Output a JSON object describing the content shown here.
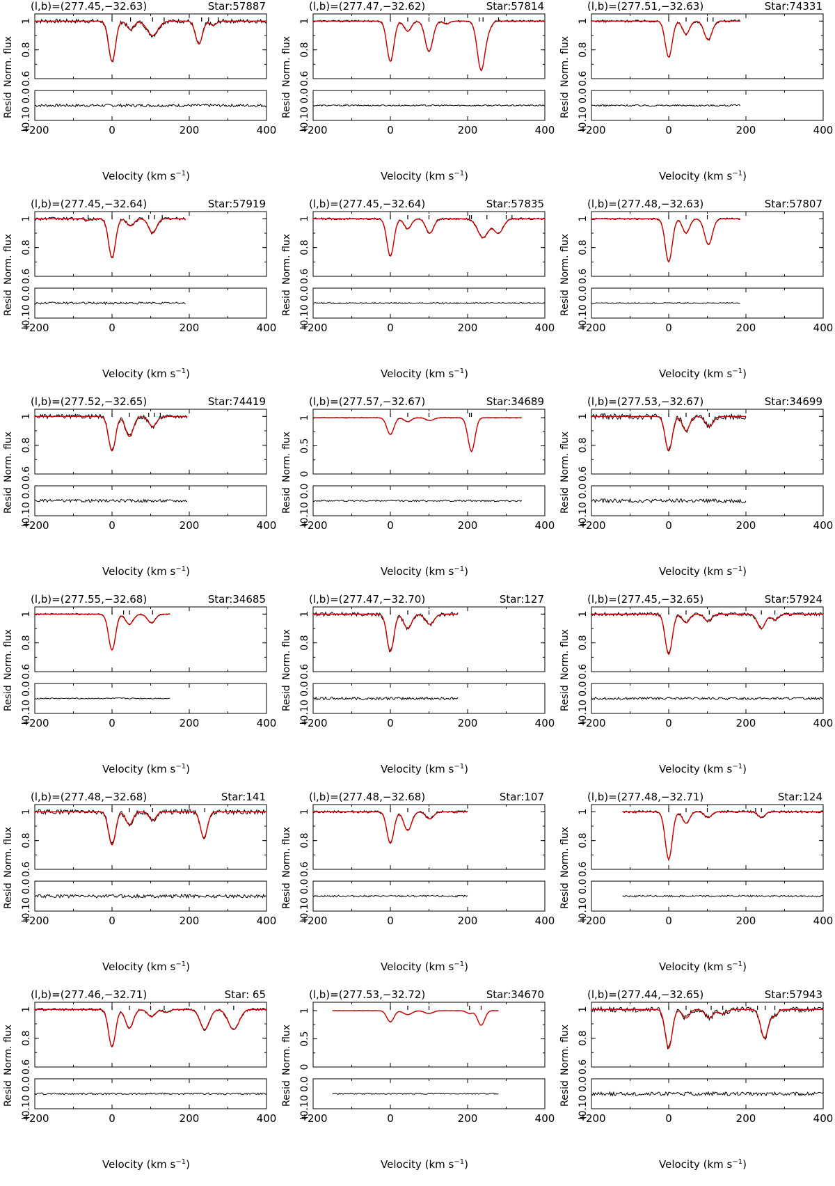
{
  "labels": {
    "ylabel_top": "Norm. flux",
    "ylabel_bottom": "Resid",
    "xlabel_prefix": "Velocity (km s",
    "xlabel_exp": "−1",
    "xlabel_suffix": ")",
    "resid_ticks": "+0.10 0.0",
    "resid_tick_text": "0.10 0.0",
    "resid_zero": "0.0",
    "resid_plus": "+"
  },
  "chart_data": [
    {
      "type": "line",
      "title": "(l,b)=(277.45,−32.63)",
      "star": "Star:57887",
      "xlim": [
        -200,
        400
      ],
      "ylim": [
        0.6,
        1.05
      ],
      "yticks": [
        "0.6",
        "0.8",
        "1"
      ],
      "xticks": [
        "−200",
        "0",
        "200",
        "400"
      ],
      "x_range": [
        -200,
        400
      ],
      "components": [
        {
          "v": 0,
          "d": 0.28,
          "w": 9
        },
        {
          "v": 48,
          "d": 0.06,
          "w": 9
        },
        {
          "v": 105,
          "d": 0.1,
          "w": 14
        },
        {
          "v": 225,
          "d": 0.16,
          "w": 9
        },
        {
          "v": 262,
          "d": 0.03,
          "w": 8
        }
      ],
      "markers": [
        0,
        48,
        105,
        135,
        232,
        250,
        275
      ],
      "noise": 0.01
    },
    {
      "type": "line",
      "title": "(l,b)=(277.47,−32.62)",
      "star": "Star:57814",
      "xlim": [
        -200,
        400
      ],
      "ylim": [
        0.6,
        1.05
      ],
      "yticks": [
        "0.6",
        "0.8",
        "1"
      ],
      "xticks": [
        "−200",
        "0",
        "200",
        "400"
      ],
      "x_range": [
        -200,
        400
      ],
      "components": [
        {
          "v": 0,
          "d": 0.28,
          "w": 9
        },
        {
          "v": 45,
          "d": 0.07,
          "w": 9
        },
        {
          "v": 100,
          "d": 0.21,
          "w": 10
        },
        {
          "v": 145,
          "d": 0.02,
          "w": 8
        },
        {
          "v": 235,
          "d": 0.34,
          "w": 10
        },
        {
          "v": 255,
          "d": 0.04,
          "w": 8
        }
      ],
      "markers": [
        0,
        45,
        100,
        140,
        230,
        240,
        280
      ],
      "noise": 0.005
    },
    {
      "type": "line",
      "title": "(l,b)=(277.51,−32.63)",
      "star": "Star:74331",
      "xlim": [
        -200,
        400
      ],
      "ylim": [
        0.6,
        1.05
      ],
      "yticks": [
        "0.6",
        "0.8",
        "1"
      ],
      "xticks": [
        "−200",
        "0",
        "200",
        "400"
      ],
      "x_range": [
        -200,
        185
      ],
      "components": [
        {
          "v": 0,
          "d": 0.25,
          "w": 9
        },
        {
          "v": 45,
          "d": 0.09,
          "w": 9
        },
        {
          "v": 102,
          "d": 0.13,
          "w": 10
        }
      ],
      "markers": [
        0,
        45,
        100,
        115
      ],
      "noise": 0.006
    },
    {
      "type": "line",
      "title": "(l,b)=(277.45,−32.64)",
      "star": "Star:57919",
      "xlim": [
        -200,
        400
      ],
      "ylim": [
        0.6,
        1.05
      ],
      "yticks": [
        "0.6",
        "0.8",
        "1"
      ],
      "xticks": [
        "−200",
        "0",
        "200",
        "400"
      ],
      "x_range": [
        -200,
        190
      ],
      "components": [
        {
          "v": 0,
          "d": 0.27,
          "w": 9
        },
        {
          "v": 48,
          "d": 0.05,
          "w": 9
        },
        {
          "v": 105,
          "d": 0.1,
          "w": 10
        },
        {
          "v": -62,
          "d": 0.01,
          "w": 8
        }
      ],
      "markers": [
        -62,
        0,
        45,
        95,
        110,
        130
      ],
      "noise": 0.008
    },
    {
      "type": "line",
      "title": "(l,b)=(277.45,−32.64)",
      "star": "Star:57835",
      "xlim": [
        -200,
        400
      ],
      "ylim": [
        0.6,
        1.05
      ],
      "yticks": [
        "0.6",
        "0.8",
        "1"
      ],
      "xticks": [
        "−200",
        "0",
        "200",
        "400"
      ],
      "x_range": [
        -200,
        400
      ],
      "components": [
        {
          "v": 0,
          "d": 0.26,
          "w": 9
        },
        {
          "v": 45,
          "d": 0.07,
          "w": 9
        },
        {
          "v": 102,
          "d": 0.1,
          "w": 10
        },
        {
          "v": 240,
          "d": 0.13,
          "w": 14
        },
        {
          "v": 280,
          "d": 0.1,
          "w": 12
        }
      ],
      "markers": [
        0,
        45,
        100,
        205,
        210,
        250,
        300,
        315
      ],
      "noise": 0.005
    },
    {
      "type": "line",
      "title": "(l,b)=(277.48,−32.63)",
      "star": "Star:57807",
      "xlim": [
        -200,
        400
      ],
      "ylim": [
        0.6,
        1.05
      ],
      "yticks": [
        "0.6",
        "0.8",
        "1"
      ],
      "xticks": [
        "−200",
        "0",
        "200",
        "400"
      ],
      "x_range": [
        -200,
        185
      ],
      "components": [
        {
          "v": 0,
          "d": 0.3,
          "w": 9
        },
        {
          "v": 45,
          "d": 0.1,
          "w": 9
        },
        {
          "v": 103,
          "d": 0.18,
          "w": 10
        }
      ],
      "markers": [
        0,
        45,
        100
      ],
      "noise": 0.004
    },
    {
      "type": "line",
      "title": "(l,b)=(277.52,−32.65)",
      "star": "Star:74419",
      "xlim": [
        -200,
        400
      ],
      "ylim": [
        0.6,
        1.05
      ],
      "yticks": [
        "0.6",
        "0.8",
        "1"
      ],
      "xticks": [
        "−200",
        "0",
        "200",
        "400"
      ],
      "x_range": [
        -200,
        195
      ],
      "components": [
        {
          "v": 0,
          "d": 0.24,
          "w": 9
        },
        {
          "v": 45,
          "d": 0.14,
          "w": 10
        },
        {
          "v": 105,
          "d": 0.07,
          "w": 10
        }
      ],
      "markers": [
        0,
        45,
        95,
        110,
        125
      ],
      "noise": 0.01
    },
    {
      "type": "line",
      "title": "(l,b)=(277.57,−32.67)",
      "star": "Star:34689",
      "xlim": [
        -200,
        400
      ],
      "ylim": [
        0,
        1.15
      ],
      "yticks": [
        "0",
        "0.5",
        "1"
      ],
      "xticks": [
        "−200",
        "0",
        "200",
        "400"
      ],
      "x_range": [
        -200,
        340
      ],
      "components": [
        {
          "v": 0,
          "d": 0.3,
          "w": 9
        },
        {
          "v": 45,
          "d": 0.07,
          "w": 9
        },
        {
          "v": 102,
          "d": 0.05,
          "w": 10
        },
        {
          "v": 210,
          "d": 0.6,
          "w": 9
        }
      ],
      "markers": [
        0,
        45,
        100,
        205,
        210
      ],
      "noise": 0.006
    },
    {
      "type": "line",
      "title": "(l,b)=(277.53,−32.67)",
      "star": "Star:34699",
      "xlim": [
        -200,
        400
      ],
      "ylim": [
        0.6,
        1.05
      ],
      "yticks": [
        "0.6",
        "0.8",
        "1"
      ],
      "xticks": [
        "−200",
        "0",
        "200",
        "400"
      ],
      "x_range": [
        -200,
        200
      ],
      "components": [
        {
          "v": 0,
          "d": 0.24,
          "w": 9
        },
        {
          "v": 45,
          "d": 0.1,
          "w": 9
        },
        {
          "v": 105,
          "d": 0.07,
          "w": 10
        }
      ],
      "markers": [
        0,
        45,
        105
      ],
      "noise": 0.014
    },
    {
      "type": "line",
      "title": "(l,b)=(277.55,−32.68)",
      "star": "Star:34685",
      "xlim": [
        -200,
        400
      ],
      "ylim": [
        0.6,
        1.05
      ],
      "yticks": [
        "0.6",
        "0.8",
        "1"
      ],
      "xticks": [
        "−200",
        "0",
        "200",
        "400"
      ],
      "x_range": [
        -200,
        150
      ],
      "components": [
        {
          "v": 0,
          "d": 0.25,
          "w": 9
        },
        {
          "v": 45,
          "d": 0.07,
          "w": 10
        },
        {
          "v": 102,
          "d": 0.06,
          "w": 10
        }
      ],
      "markers": [
        0,
        30,
        45,
        105
      ],
      "noise": 0.004
    },
    {
      "type": "line",
      "title": "(l,b)=(277.47,−32.70)",
      "star": "Star:127",
      "xlim": [
        -200,
        400
      ],
      "ylim": [
        0.6,
        1.05
      ],
      "yticks": [
        "0.6",
        "0.8",
        "1"
      ],
      "xticks": [
        "−200",
        "0",
        "200",
        "400"
      ],
      "x_range": [
        -200,
        175
      ],
      "components": [
        {
          "v": 0,
          "d": 0.26,
          "w": 9
        },
        {
          "v": 45,
          "d": 0.1,
          "w": 10
        },
        {
          "v": 102,
          "d": 0.07,
          "w": 11
        }
      ],
      "markers": [
        0,
        45,
        100
      ],
      "noise": 0.01
    },
    {
      "type": "line",
      "title": "(l,b)=(277.45,−32.65)",
      "star": "Star:57924",
      "xlim": [
        -200,
        400
      ],
      "ylim": [
        0.6,
        1.05
      ],
      "yticks": [
        "0.6",
        "0.8",
        "1"
      ],
      "xticks": [
        "−200",
        "0",
        "200",
        "400"
      ],
      "x_range": [
        -200,
        400
      ],
      "components": [
        {
          "v": 0,
          "d": 0.28,
          "w": 9
        },
        {
          "v": 45,
          "d": 0.06,
          "w": 9
        },
        {
          "v": 102,
          "d": 0.05,
          "w": 9
        },
        {
          "v": 240,
          "d": 0.1,
          "w": 10
        },
        {
          "v": 275,
          "d": 0.04,
          "w": 9
        }
      ],
      "markers": [
        0,
        45,
        105,
        240,
        275
      ],
      "noise": 0.008
    },
    {
      "type": "line",
      "title": "(l,b)=(277.48,−32.68)",
      "star": "Star:141",
      "xlim": [
        -200,
        400
      ],
      "ylim": [
        0.6,
        1.05
      ],
      "yticks": [
        "0.6",
        "0.8",
        "1"
      ],
      "xticks": [
        "−200",
        "0",
        "200",
        "400"
      ],
      "x_range": [
        -200,
        400
      ],
      "components": [
        {
          "v": 0,
          "d": 0.23,
          "w": 9
        },
        {
          "v": 45,
          "d": 0.09,
          "w": 9
        },
        {
          "v": 105,
          "d": 0.06,
          "w": 9
        },
        {
          "v": 238,
          "d": 0.18,
          "w": 9
        }
      ],
      "markers": [
        0,
        45,
        105,
        240
      ],
      "noise": 0.012
    },
    {
      "type": "line",
      "title": "(l,b)=(277.48,−32.68)",
      "star": "Star:107",
      "xlim": [
        -200,
        400
      ],
      "ylim": [
        0.6,
        1.05
      ],
      "yticks": [
        "0.6",
        "0.8",
        "1"
      ],
      "xticks": [
        "−200",
        "0",
        "200",
        "400"
      ],
      "x_range": [
        -200,
        200
      ],
      "components": [
        {
          "v": 0,
          "d": 0.22,
          "w": 9
        },
        {
          "v": 45,
          "d": 0.13,
          "w": 10
        },
        {
          "v": 102,
          "d": 0.05,
          "w": 10
        }
      ],
      "markers": [
        0,
        45,
        100
      ],
      "noise": 0.006
    },
    {
      "type": "line",
      "title": "(l,b)=(277.48,−32.71)",
      "star": "Star:124",
      "xlim": [
        -200,
        400
      ],
      "ylim": [
        0.6,
        1.05
      ],
      "yticks": [
        "0.6",
        "0.8",
        "1"
      ],
      "xticks": [
        "−200",
        "0",
        "200",
        "400"
      ],
      "x_range": [
        -120,
        400
      ],
      "components": [
        {
          "v": 0,
          "d": 0.33,
          "w": 9
        },
        {
          "v": 45,
          "d": 0.08,
          "w": 9
        },
        {
          "v": 102,
          "d": 0.04,
          "w": 9
        },
        {
          "v": 240,
          "d": 0.04,
          "w": 9
        }
      ],
      "markers": [
        0,
        45,
        100,
        225,
        240
      ],
      "noise": 0.006
    },
    {
      "type": "line",
      "title": "(l,b)=(277.46,−32.71)",
      "star": "Star: 65",
      "xlim": [
        -200,
        400
      ],
      "ylim": [
        0.6,
        1.05
      ],
      "yticks": [
        "0.6",
        "0.8",
        "1"
      ],
      "xticks": [
        "−200",
        "0",
        "200",
        "400"
      ],
      "x_range": [
        -200,
        400
      ],
      "components": [
        {
          "v": 0,
          "d": 0.26,
          "w": 9
        },
        {
          "v": 45,
          "d": 0.13,
          "w": 10
        },
        {
          "v": 102,
          "d": 0.05,
          "w": 10
        },
        {
          "v": 140,
          "d": 0.02,
          "w": 9
        },
        {
          "v": 240,
          "d": 0.14,
          "w": 12
        },
        {
          "v": 315,
          "d": 0.14,
          "w": 14
        }
      ],
      "markers": [
        0,
        45,
        100,
        135,
        240,
        315
      ],
      "noise": 0.006
    },
    {
      "type": "line",
      "title": "(l,b)=(277.53,−32.72)",
      "star": "Star:34670",
      "xlim": [
        -200,
        400
      ],
      "ylim": [
        0,
        1.15
      ],
      "yticks": [
        "0",
        "0.5",
        "1"
      ],
      "xticks": [
        "−200",
        "0",
        "200",
        "400"
      ],
      "x_range": [
        -150,
        280
      ],
      "components": [
        {
          "v": 0,
          "d": 0.2,
          "w": 9
        },
        {
          "v": 45,
          "d": 0.07,
          "w": 11
        },
        {
          "v": 100,
          "d": 0.05,
          "w": 11
        },
        {
          "v": 205,
          "d": 0.05,
          "w": 8
        },
        {
          "v": 235,
          "d": 0.26,
          "w": 9
        }
      ],
      "markers": [
        0,
        45,
        100,
        205,
        235
      ],
      "noise": 0.004
    },
    {
      "type": "line",
      "title": "(l,b)=(277.44,−32.65)",
      "star": "Star:57943",
      "xlim": [
        -200,
        400
      ],
      "ylim": [
        0.6,
        1.05
      ],
      "yticks": [
        "0.6",
        "0.8",
        "1"
      ],
      "xticks": [
        "−200",
        "0",
        "200",
        "400"
      ],
      "x_range": [
        -200,
        400
      ],
      "components": [
        {
          "v": 0,
          "d": 0.27,
          "w": 9
        },
        {
          "v": 45,
          "d": 0.06,
          "w": 9
        },
        {
          "v": 105,
          "d": 0.06,
          "w": 10
        },
        {
          "v": 140,
          "d": 0.03,
          "w": 10
        },
        {
          "v": 248,
          "d": 0.2,
          "w": 10
        },
        {
          "v": 275,
          "d": 0.04,
          "w": 8
        }
      ],
      "markers": [
        0,
        45,
        110,
        140,
        230,
        250,
        275
      ],
      "noise": 0.013
    }
  ]
}
